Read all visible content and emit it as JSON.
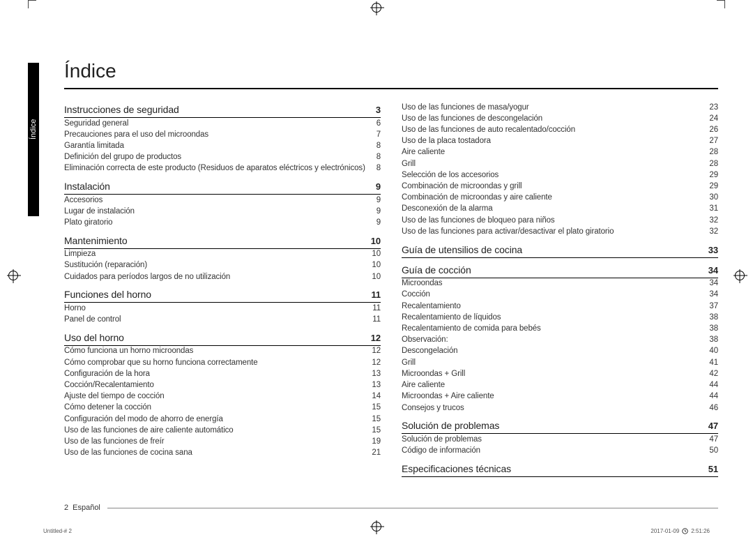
{
  "title": "Índice",
  "sideTab": "Índice",
  "pageNumber": "2",
  "language": "Español",
  "slugLeft": "Untitled-#   2",
  "slugDate": "2017-01-09",
  "slugTime": "2:51:26",
  "leftCol": [
    {
      "section": "Instrucciones de seguridad",
      "page": "3",
      "entries": [
        {
          "t": "Seguridad general",
          "p": "6"
        },
        {
          "t": "Precauciones para el uso del microondas",
          "p": "7"
        },
        {
          "t": "Garantía limitada",
          "p": "8"
        },
        {
          "t": "Definición del grupo de productos",
          "p": "8"
        },
        {
          "t": "Eliminación correcta de este producto (Residuos de aparatos eléctricos y electrónicos)",
          "p": "8"
        }
      ]
    },
    {
      "section": "Instalación",
      "page": "9",
      "entries": [
        {
          "t": "Accesorios",
          "p": "9"
        },
        {
          "t": "Lugar de instalación",
          "p": "9"
        },
        {
          "t": "Plato giratorio",
          "p": "9"
        }
      ]
    },
    {
      "section": "Mantenimiento",
      "page": "10",
      "entries": [
        {
          "t": "Limpieza",
          "p": "10"
        },
        {
          "t": "Sustitución (reparación)",
          "p": "10"
        },
        {
          "t": "Cuidados para períodos largos de no utilización",
          "p": "10"
        }
      ]
    },
    {
      "section": "Funciones del horno",
      "page": "11",
      "entries": [
        {
          "t": "Horno",
          "p": "11"
        },
        {
          "t": "Panel de control",
          "p": "11"
        }
      ]
    },
    {
      "section": "Uso del horno",
      "page": "12",
      "entries": [
        {
          "t": "Cómo funciona un horno microondas",
          "p": "12"
        },
        {
          "t": "Cómo comprobar que su horno funciona correctamente",
          "p": "12"
        },
        {
          "t": "Configuración de la hora",
          "p": "13"
        },
        {
          "t": "Cocción/Recalentamiento",
          "p": "13"
        },
        {
          "t": "Ajuste del tiempo de cocción",
          "p": "14"
        },
        {
          "t": "Cómo detener la cocción",
          "p": "15"
        },
        {
          "t": "Configuración del modo de ahorro de energía",
          "p": "15"
        },
        {
          "t": "Uso de las funciones de aire caliente automático",
          "p": "15"
        },
        {
          "t": "Uso de las funciones de freír",
          "p": "19"
        },
        {
          "t": "Uso de las funciones de cocina sana",
          "p": "21"
        }
      ]
    }
  ],
  "rightTop": [
    {
      "t": "Uso de las funciones de masa/yogur",
      "p": "23"
    },
    {
      "t": "Uso de las funciones de descongelación",
      "p": "24"
    },
    {
      "t": "Uso de las funciones de auto recalentado/cocción",
      "p": "26"
    },
    {
      "t": "Uso de la placa tostadora",
      "p": "27"
    },
    {
      "t": "Aire caliente",
      "p": "28"
    },
    {
      "t": "Grill",
      "p": "28"
    },
    {
      "t": "Selección de los accesorios",
      "p": "29"
    },
    {
      "t": "Combinación de microondas y grill",
      "p": "29"
    },
    {
      "t": "Combinación de microondas y aire caliente",
      "p": "30"
    },
    {
      "t": "Desconexión de la alarma",
      "p": "31"
    },
    {
      "t": "Uso de las funciones de bloqueo para niños",
      "p": "32"
    },
    {
      "t": "Uso de las funciones para activar/desactivar el plato giratorio",
      "p": "32"
    }
  ],
  "rightCol": [
    {
      "section": "Guía de utensilios de cocina",
      "page": "33",
      "entries": []
    },
    {
      "section": "Guía de cocción",
      "page": "34",
      "entries": [
        {
          "t": "Microondas",
          "p": "34"
        },
        {
          "t": "Cocción",
          "p": "34"
        },
        {
          "t": "Recalentamiento",
          "p": "37"
        },
        {
          "t": "Recalentamiento de líquidos",
          "p": "38"
        },
        {
          "t": "Recalentamiento de comida para bebés",
          "p": "38"
        },
        {
          "t": "Observación:",
          "p": "38"
        },
        {
          "t": "Descongelación",
          "p": "40"
        },
        {
          "t": "Grill",
          "p": "41"
        },
        {
          "t": "Microondas + Grill",
          "p": "42"
        },
        {
          "t": "Aire caliente",
          "p": "44"
        },
        {
          "t": "Microondas + Aire caliente",
          "p": "44"
        },
        {
          "t": "Consejos y trucos",
          "p": "46"
        }
      ]
    },
    {
      "section": "Solución de problemas",
      "page": "47",
      "entries": [
        {
          "t": "Solución de problemas",
          "p": "47"
        },
        {
          "t": "Código de información",
          "p": "50"
        }
      ]
    },
    {
      "section": "Especificaciones técnicas",
      "page": "51",
      "entries": []
    }
  ]
}
